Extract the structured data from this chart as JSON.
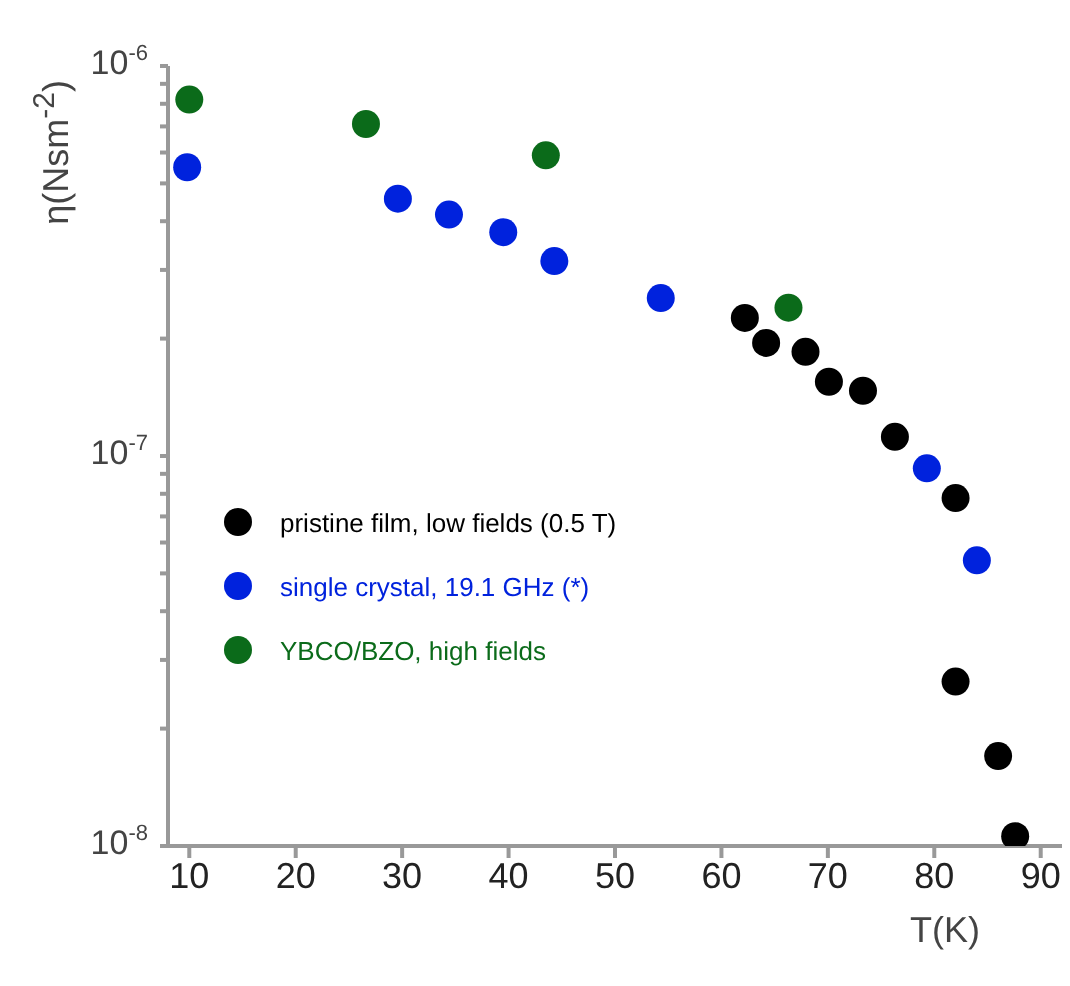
{
  "chart_data": {
    "type": "scatter",
    "xlabel": "T(K)",
    "ylabel": "η(Nsm$^{-2}$)",
    "log": "y",
    "xlim": [
      8,
      92
    ],
    "xticks": [
      10,
      20,
      30,
      40,
      50,
      60,
      70,
      80,
      90
    ],
    "ylim": [
      1e-08,
      1e-06
    ],
    "yticks": [
      {
        "value": 1e-08,
        "label": "10$^{-8}$"
      },
      {
        "value": 2e-08,
        "label": null
      },
      {
        "value": 3e-08,
        "label": null
      },
      {
        "value": 4e-08,
        "label": null
      },
      {
        "value": 5e-08,
        "label": null
      },
      {
        "value": 6e-08,
        "label": null
      },
      {
        "value": 7e-08,
        "label": null
      },
      {
        "value": 8e-08,
        "label": null
      },
      {
        "value": 9e-08,
        "label": null
      },
      {
        "value": 1e-07,
        "label": "10$^{-7}$"
      },
      {
        "value": 2e-07,
        "label": null
      },
      {
        "value": 3e-07,
        "label": null
      },
      {
        "value": 4e-07,
        "label": null
      },
      {
        "value": 5e-07,
        "label": null
      },
      {
        "value": 6e-07,
        "label": null
      },
      {
        "value": 7e-07,
        "label": null
      },
      {
        "value": 8e-07,
        "label": null
      },
      {
        "value": 9e-07,
        "label": null
      },
      {
        "value": 1e-06,
        "label": "10$^{-6}$"
      }
    ],
    "grid": false,
    "legend": "left",
    "marker": "circle",
    "series": [
      {
        "name": "pristine film, low fields (0.5 T)",
        "color": "#000000",
        "x": [
          62.2,
          64.2,
          67.9,
          70.1,
          73.3,
          76.3,
          82.0,
          82.0,
          86.0,
          87.6
        ],
        "values": [
          2.26e-07,
          1.95e-07,
          1.85e-07,
          1.55e-07,
          1.47e-07,
          1.12e-07,
          7.8e-08,
          2.64e-08,
          1.7e-08,
          1.06e-08
        ]
      },
      {
        "name": "single crystal, 19.1 GHz (*)",
        "color": "#0022dd",
        "x": [
          9.8,
          29.6,
          34.4,
          39.5,
          44.3,
          54.3,
          79.3,
          84.0
        ],
        "values": [
          5.5e-07,
          4.57e-07,
          4.16e-07,
          3.75e-07,
          3.16e-07,
          2.54e-07,
          9.3e-08,
          5.4e-08
        ]
      },
      {
        "name": "YBCO/BZO, high fields",
        "color": "#0b6b1a",
        "x": [
          10,
          26.6,
          43.5,
          66.3
        ],
        "values": [
          8.2e-07,
          7.1e-07,
          5.9e-07,
          2.4e-07
        ]
      }
    ]
  }
}
